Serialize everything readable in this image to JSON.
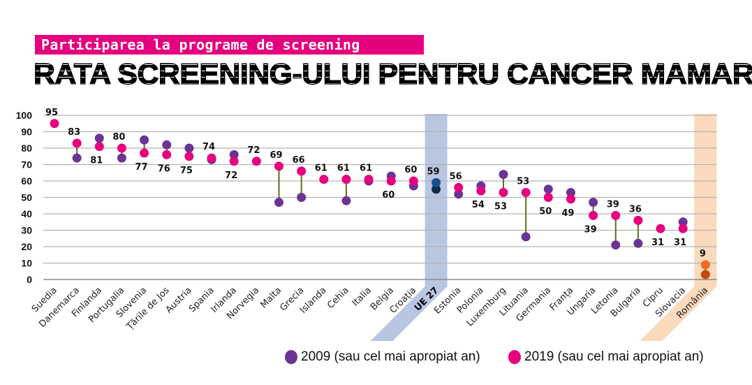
{
  "header": {
    "kicker": "Participarea la programe de screening",
    "title": "RATA SCREENING-ULUI PENTRU CANCER MAMAR"
  },
  "colors": {
    "series_2009": "#6b3494",
    "series_2019": "#e6007e",
    "connector": "#5a6e1e",
    "eu_band": "#b9c6e2",
    "eu_2009": "#0f2a4a",
    "eu_2019": "#1a4e8c",
    "ro_band": "#fbd9bd",
    "ro_2009": "#c24a0c",
    "ro_2019": "#f26a1b",
    "grid": "#b3b3b3",
    "kicker_bg": "#e5007d"
  },
  "legend": [
    {
      "label": "2009 (sau cel mai apropiat an)",
      "color": "#6b3494"
    },
    {
      "label": "2019 (sau cel mai apropiat an)",
      "color": "#e6007e"
    }
  ],
  "chart_data": {
    "type": "dumbbell",
    "title": "RATA SCREENING-ULUI PENTRU CANCER MAMAR",
    "subtitle": "Participarea la programe de screening",
    "xlabel": "",
    "ylabel": "",
    "ylim": [
      0,
      100
    ],
    "yticks": [
      0,
      10,
      20,
      30,
      40,
      50,
      60,
      70,
      80,
      90,
      100
    ],
    "grid": true,
    "legend_position": "bottom-right",
    "categories": [
      "Suedia",
      "Danemarca",
      "Finlanda",
      "Portugalia",
      "Slovenia",
      "Țările de Jos",
      "Austria",
      "Spania",
      "Irlanda",
      "Norvegia",
      "Malta",
      "Grecia",
      "Islanda",
      "Cehia",
      "Italia",
      "Belgia",
      "Croația",
      "UE 27",
      "Estonia",
      "Polonia",
      "Luxemburg",
      "Lituania",
      "Germania",
      "Franța",
      "Ungaria",
      "Letonia",
      "Bulgaria",
      "Cipru",
      "Slovacia",
      "România"
    ],
    "highlighted": {
      "UE 27": "eu",
      "România": "ro"
    },
    "series": [
      {
        "name": "2009 (sau cel mai apropiat an)",
        "values": [
          null,
          74,
          86,
          74,
          85,
          82,
          80,
          73,
          76,
          null,
          47,
          50,
          null,
          48,
          60,
          63,
          57,
          55,
          52,
          57,
          64,
          26,
          55,
          53,
          47,
          21,
          22,
          null,
          35,
          3
        ]
      },
      {
        "name": "2019 (sau cel mai apropiat an)",
        "values": [
          95,
          83,
          81,
          80,
          77,
          76,
          75,
          74,
          72,
          72,
          69,
          66,
          61,
          61,
          61,
          60,
          60,
          59,
          56,
          54,
          53,
          53,
          50,
          49,
          39,
          39,
          36,
          31,
          31,
          9
        ]
      }
    ],
    "data_labels_2019": [
      "95",
      "83",
      "81",
      "80",
      "77",
      "76",
      "75",
      "74",
      "72",
      "72",
      "69",
      "66",
      "61",
      "61",
      "61",
      "60",
      "60",
      "59",
      "56",
      "54",
      "53",
      "53",
      "50",
      "49",
      "39",
      "39",
      "36",
      "31",
      "31",
      "9"
    ],
    "label_position": [
      "above",
      "above",
      "below",
      "above",
      "below",
      "below",
      "below",
      "above",
      "below",
      "above",
      "above",
      "above",
      "above",
      "above",
      "above",
      "below",
      "above",
      "above",
      "above",
      "below",
      "below",
      "above",
      "below",
      "below",
      "below",
      "above",
      "above",
      "below",
      "below",
      "above"
    ]
  }
}
